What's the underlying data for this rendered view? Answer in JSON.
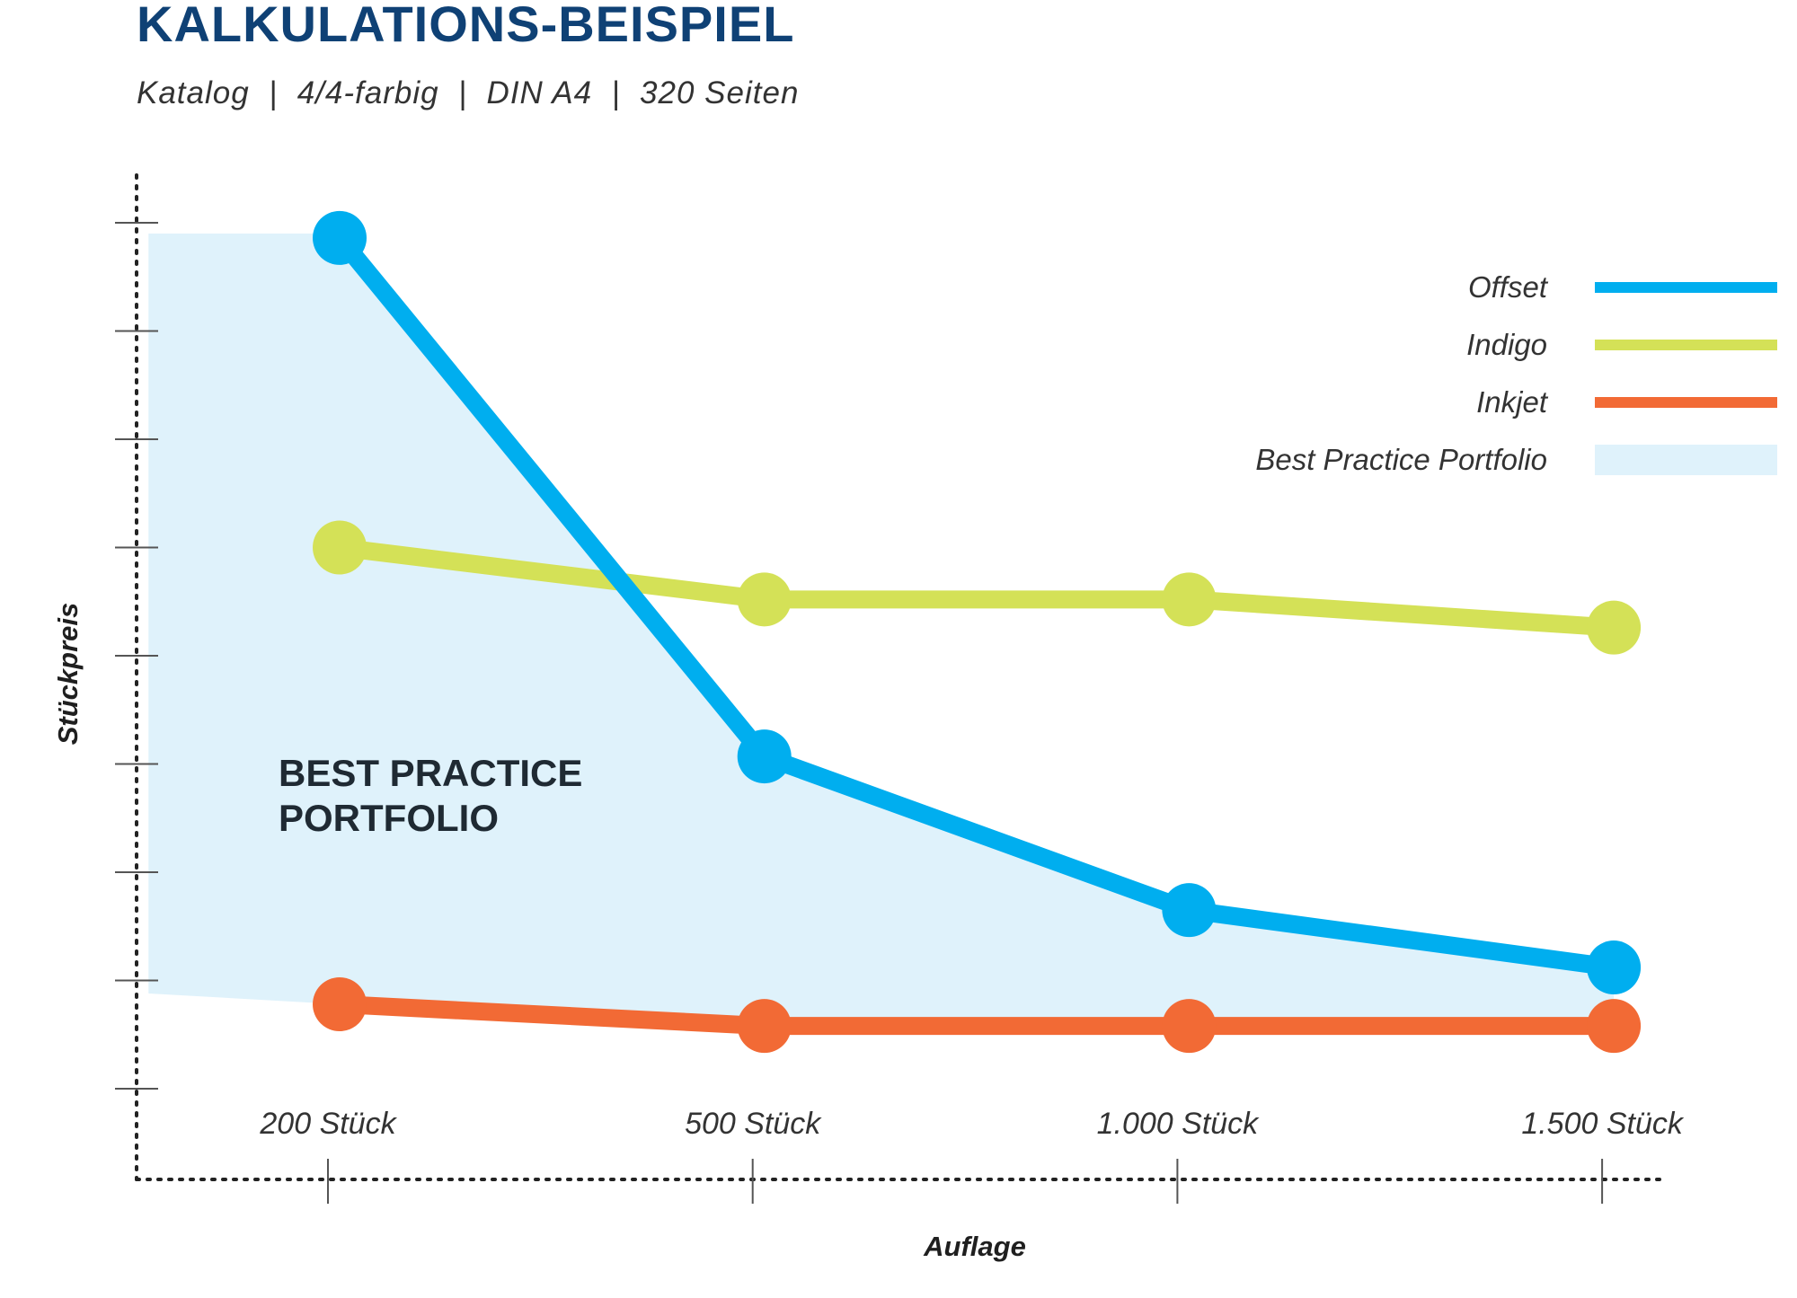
{
  "header": {
    "title": "KALKULATIONS-BEISPIEL",
    "subtitle": "Katalog  |  4/4-farbig  |  DIN A4  |  320 Seiten"
  },
  "colors": {
    "title": "#0f4175",
    "offset": "#00aeef",
    "indigo": "#d4e157",
    "inkjet": "#f26a35",
    "portfolio": "#dff2fb",
    "axis": "#222222"
  },
  "chart_data": {
    "type": "line",
    "title": "KALKULATIONS-BEISPIEL",
    "subtitle": "Katalog  |  4/4-farbig  |  DIN A4  |  320 Seiten",
    "xlabel": "Auflage",
    "ylabel": "Stückpreis",
    "categories": [
      "200 Stück",
      "500 Stück",
      "1.000 Stück",
      "1.500 Stück"
    ],
    "ylim": [
      0,
      8
    ],
    "y_ticks": [
      0,
      1,
      2,
      3,
      4,
      5,
      6,
      7,
      8
    ],
    "y_tick_labels_shown": false,
    "grid": false,
    "legend_position": "top-right",
    "series": [
      {
        "name": "Offset",
        "color": "#00aeef",
        "values": [
          7.86,
          3.07,
          1.65,
          1.12
        ]
      },
      {
        "name": "Indigo",
        "color": "#d4e157",
        "values": [
          5.0,
          4.52,
          4.52,
          4.26
        ]
      },
      {
        "name": "Inkjet",
        "color": "#f26a35",
        "values": [
          0.78,
          0.58,
          0.58,
          0.58
        ]
      }
    ],
    "area": {
      "name": "Best Practice Portfolio",
      "label_lines": [
        "BEST PRACTICE",
        "PORTFOLIO"
      ],
      "color": "#dff2fb",
      "upper": [
        {
          "x": -0.45,
          "y": 7.9
        },
        {
          "x": 0,
          "y": 7.9
        },
        {
          "x": 1,
          "y": 3.07
        },
        {
          "x": 2,
          "y": 1.65
        },
        {
          "x": 3,
          "y": 1.12
        }
      ],
      "lower": [
        {
          "x": -0.45,
          "y": 0.88
        },
        {
          "x": 0,
          "y": 0.78
        },
        {
          "x": 1,
          "y": 0.58
        },
        {
          "x": 2,
          "y": 0.58
        },
        {
          "x": 3,
          "y": 0.58
        }
      ]
    },
    "legend": [
      {
        "label": "Offset",
        "color": "#00aeef",
        "kind": "line"
      },
      {
        "label": "Indigo",
        "color": "#d4e157",
        "kind": "line"
      },
      {
        "label": "Inkjet",
        "color": "#f26a35",
        "kind": "line"
      },
      {
        "label": "Best Practice Portfolio",
        "color": "#dff2fb",
        "kind": "area"
      }
    ]
  }
}
